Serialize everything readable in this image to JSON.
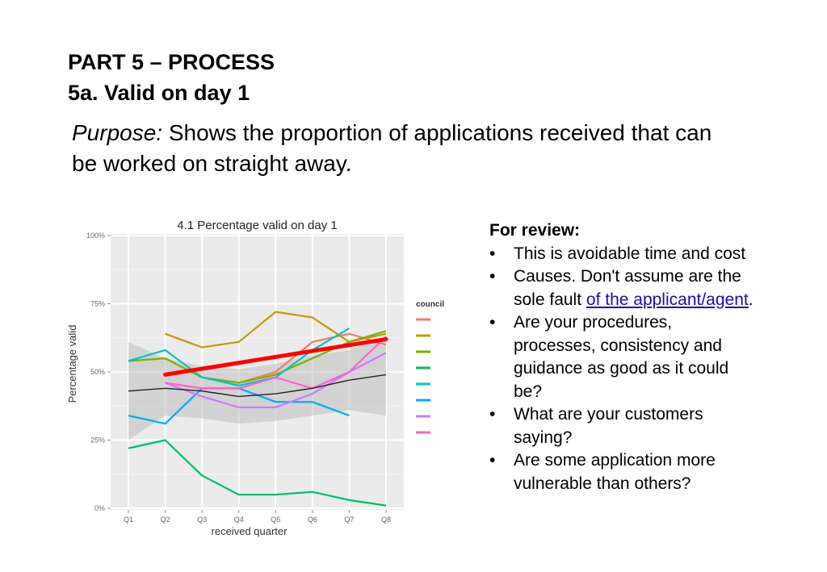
{
  "slide": {
    "heading_line1": "PART 5 – PROCESS",
    "heading_line2": "5a. Valid on day 1",
    "purpose_label": "Purpose:",
    "purpose_text": " Shows the proportion of applications received that can be worked on straight away."
  },
  "review": {
    "title": "For review:",
    "bullets": [
      {
        "text": "This is avoidable time and cost"
      },
      {
        "pre": "Causes. Don't assume are the sole fault ",
        "link": "of the applicant/agent",
        "post": "."
      },
      {
        "text": "Are your procedures, processes, consistency and guidance as good as it could be?"
      },
      {
        "text": "What are your customers saying?"
      },
      {
        "text": "Are some application more vulnerable than others?"
      }
    ]
  },
  "chart_data": {
    "type": "line",
    "title": "4.1 Percentage valid on day 1",
    "xlabel": "received quarter",
    "ylabel": "Percentage valid",
    "categories": [
      "Q1",
      "Q2",
      "Q3",
      "Q4",
      "Q5",
      "Q6",
      "Q7",
      "Q8"
    ],
    "yticks": [
      "0%",
      "25%",
      "50%",
      "75%",
      "100%"
    ],
    "ylim": [
      0,
      100
    ],
    "grid": true,
    "background": "#ebebeb",
    "legend": {
      "title": "council",
      "position": "right"
    },
    "series": [
      {
        "color": "#F8766D",
        "values": [
          null,
          null,
          48,
          46,
          50,
          61,
          64,
          60
        ]
      },
      {
        "color": "#C49A00",
        "values": [
          null,
          64,
          59,
          61,
          72,
          70,
          61,
          64
        ]
      },
      {
        "color": "#7CAE00",
        "values": [
          54,
          55,
          48,
          46,
          49,
          55,
          61,
          65
        ]
      },
      {
        "color": "#00BE67",
        "values": [
          22,
          25,
          12,
          5,
          5,
          6,
          3,
          1
        ]
      },
      {
        "color": "#00C1C9",
        "values": [
          54,
          58,
          48,
          45,
          48,
          58,
          66,
          null
        ]
      },
      {
        "color": "#00A9FF",
        "values": [
          34,
          31,
          44,
          44,
          39,
          39,
          34,
          null
        ]
      },
      {
        "color": "#C77CFF",
        "values": [
          null,
          46,
          41,
          37,
          37,
          42,
          50,
          57
        ]
      },
      {
        "color": "#FF61CC",
        "values": [
          null,
          46,
          44,
          44,
          48,
          44,
          50,
          63
        ]
      }
    ],
    "overall_mean": {
      "color": "#222222",
      "values": [
        43,
        44,
        43,
        41,
        42,
        44,
        47,
        49
      ]
    },
    "confidence_band": {
      "color": "#bdbdbd",
      "upper": [
        61,
        55,
        52,
        51,
        53,
        56,
        58,
        63
      ],
      "lower": [
        25,
        34,
        33,
        31,
        32,
        34,
        36,
        34
      ]
    },
    "trend": {
      "color": "#ff0000",
      "from": [
        2,
        49
      ],
      "to": [
        8,
        62
      ]
    }
  }
}
